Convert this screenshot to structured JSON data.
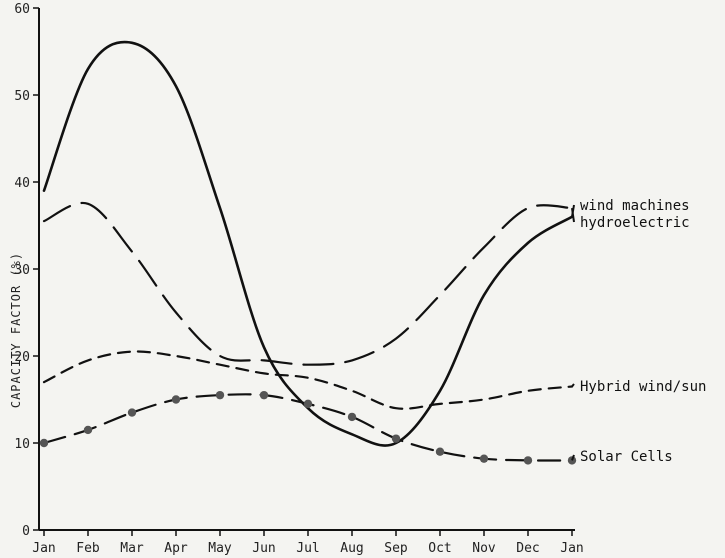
{
  "chart_data": {
    "type": "line",
    "title": "",
    "xlabel": "",
    "ylabel": "CAPACITY FACTOR (%)",
    "categories": [
      "Jan",
      "Feb",
      "Mar",
      "Apr",
      "May",
      "Jun",
      "Jul",
      "Aug",
      "Sep",
      "Oct",
      "Nov",
      "Dec",
      "Jan"
    ],
    "ylim": [
      0,
      60
    ],
    "yticks": [
      0,
      10,
      20,
      30,
      40,
      50,
      60
    ],
    "grid": false,
    "series": [
      {
        "name": "wind machines",
        "style": "solid",
        "color": "#111111",
        "values": [
          39,
          53,
          56,
          51,
          37,
          21,
          14,
          11,
          10,
          16,
          27,
          33,
          36
        ]
      },
      {
        "name": "hydroelectric",
        "style": "long-dash",
        "color": "#111111",
        "values": [
          35.5,
          37.5,
          32,
          25,
          20,
          19.5,
          19,
          19.5,
          22,
          27,
          32.5,
          37,
          37
        ]
      },
      {
        "name": "Hybrid wind/sun",
        "style": "short-dash",
        "color": "#111111",
        "values": [
          17,
          19.5,
          20.5,
          20,
          19,
          18,
          17.5,
          16,
          14,
          14.5,
          15,
          16,
          16.5
        ]
      },
      {
        "name": "Solar Cells",
        "style": "dash-dot-markers",
        "color": "#111111",
        "values": [
          10,
          11.5,
          13.5,
          15,
          15.5,
          15.5,
          14.5,
          13,
          10.5,
          9,
          8.2,
          8,
          8
        ]
      }
    ]
  }
}
